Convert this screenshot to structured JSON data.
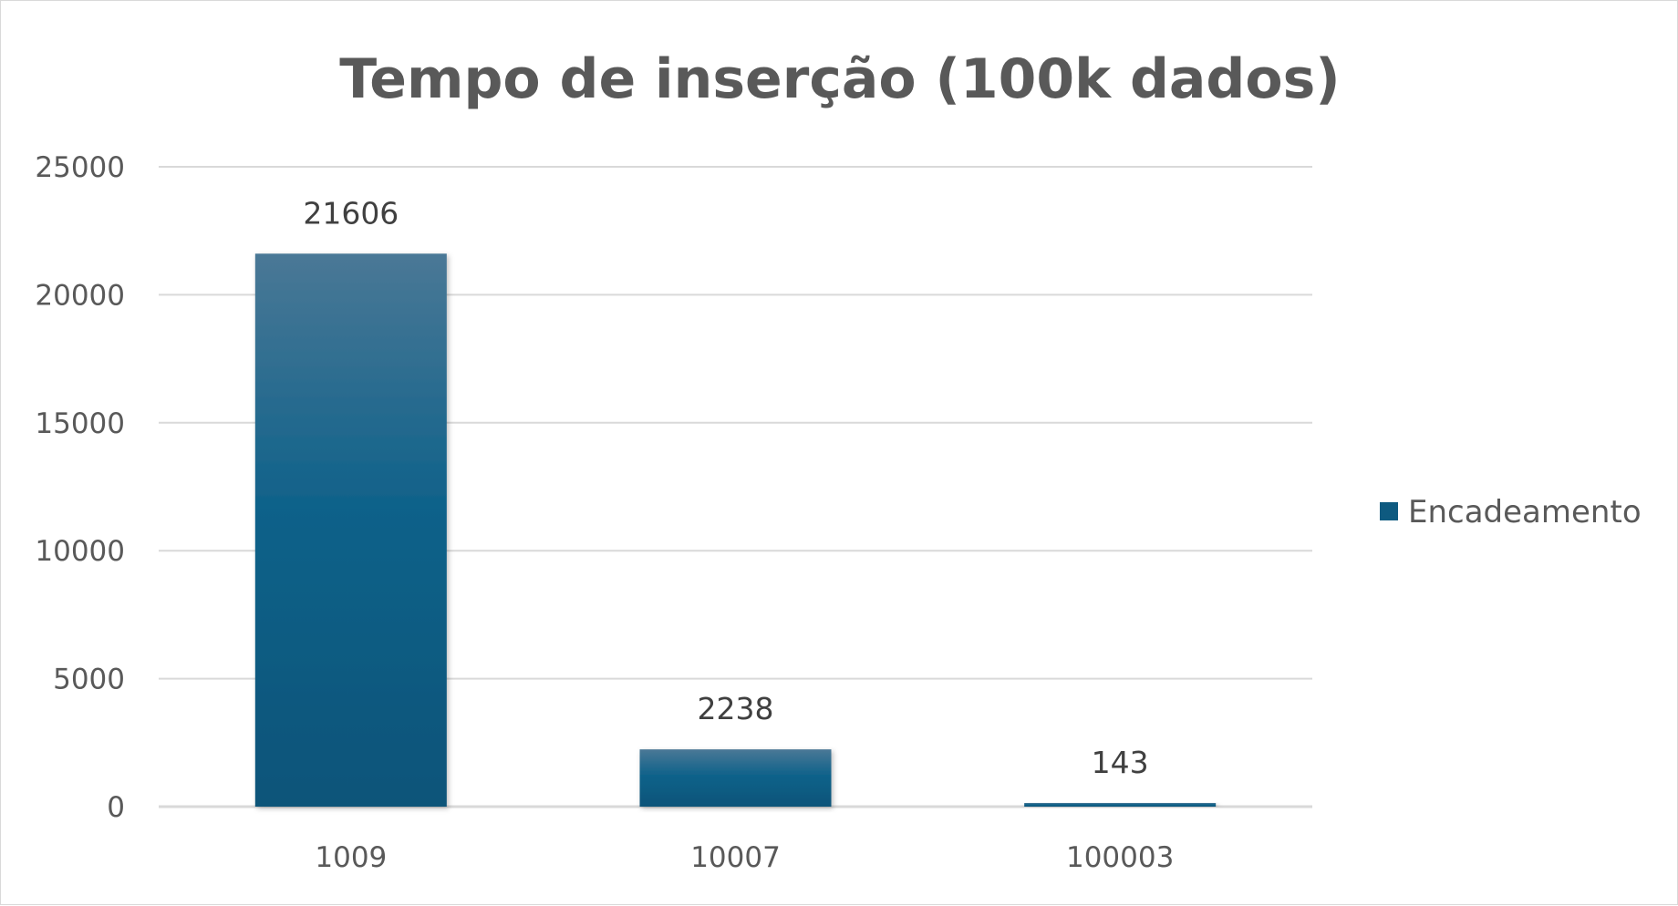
{
  "chart_data": {
    "type": "bar",
    "title": "Tempo de inserção (100k dados)",
    "xlabel": "",
    "ylabel": "",
    "categories": [
      "1009",
      "10007",
      "100003"
    ],
    "series": [
      {
        "name": "Encadeamento",
        "values": [
          21606,
          2238,
          143
        ],
        "data_labels": [
          "21606",
          "2238",
          "143"
        ],
        "color": "#0e5a80"
      }
    ],
    "ylim": [
      0,
      25000
    ],
    "yticks": [
      0,
      5000,
      10000,
      15000,
      20000,
      25000
    ],
    "ytick_labels": [
      "0",
      "5000",
      "10000",
      "15000",
      "20000",
      "25000"
    ],
    "grid": true,
    "legend": "right"
  },
  "colors": {
    "bar_top": "#4a7896",
    "bar_mid": "#10628a",
    "bar_bottom": "#0b5479",
    "gridline": "#d9d9d9",
    "text": "#595959"
  }
}
